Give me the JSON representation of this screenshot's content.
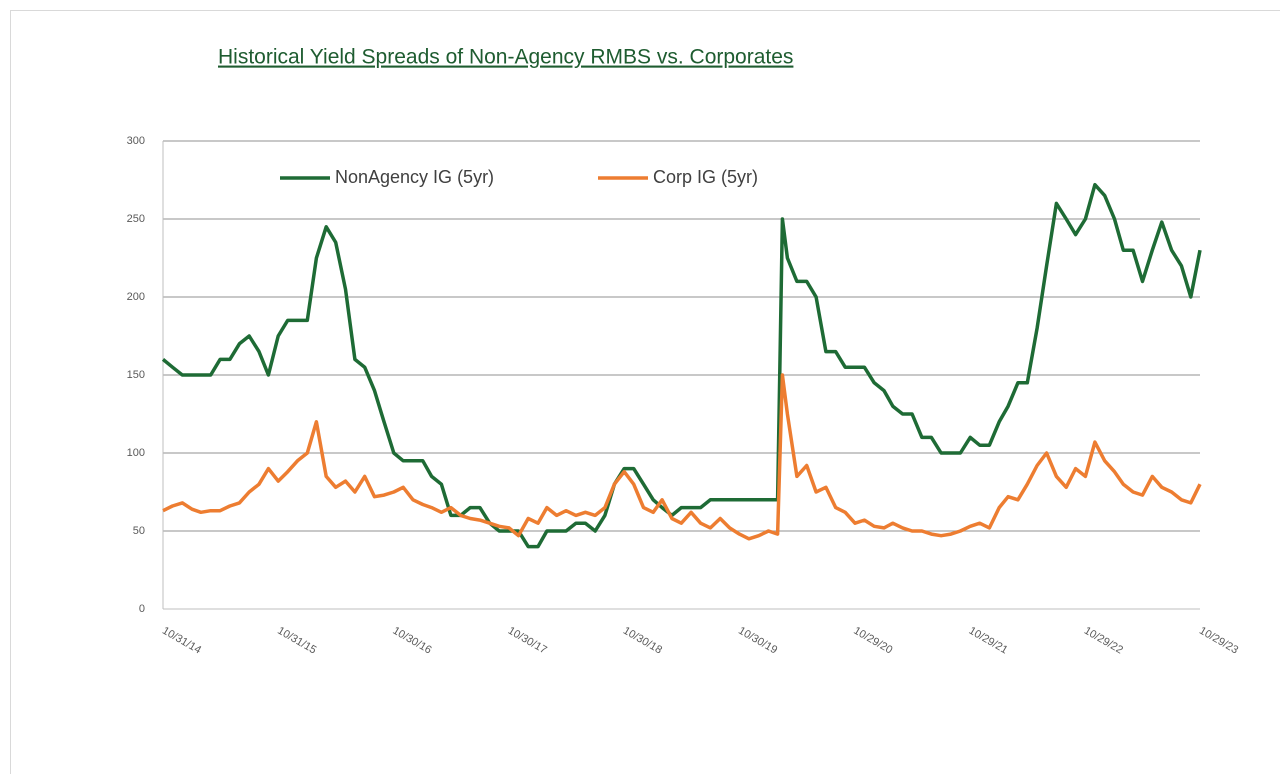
{
  "chart_data": {
    "type": "line",
    "title": "Historical Yield Spreads of Non-Agency RMBS vs. Corporates",
    "x": [
      "10/31/14",
      "11/30/14",
      "12/31/14",
      "1/31/15",
      "2/28/15",
      "3/31/15",
      "4/30/15",
      "5/31/15",
      "6/30/15",
      "7/31/15",
      "8/31/15",
      "9/30/15",
      "10/31/15",
      "11/30/15",
      "12/31/15",
      "1/31/16",
      "2/29/16",
      "3/31/16",
      "4/30/16",
      "5/31/16",
      "6/30/16",
      "7/31/16",
      "8/31/16",
      "9/30/16",
      "10/31/16",
      "11/30/16",
      "12/31/16",
      "1/31/17",
      "2/28/17",
      "3/31/17",
      "4/30/17",
      "5/31/17",
      "6/30/17",
      "7/31/17",
      "8/31/17",
      "9/30/17",
      "10/31/17",
      "11/30/17",
      "12/31/17",
      "1/31/18",
      "2/28/18",
      "3/31/18",
      "4/30/18",
      "5/31/18",
      "6/30/18",
      "7/31/18",
      "8/31/18",
      "9/30/18",
      "10/31/18",
      "11/30/18",
      "12/31/18",
      "1/31/19",
      "2/28/19",
      "3/31/19",
      "4/30/19",
      "5/31/19",
      "6/30/19",
      "7/31/19",
      "8/31/19",
      "9/30/19",
      "10/31/19",
      "11/30/19",
      "12/31/19",
      "1/31/20",
      "2/29/20",
      "3/15/20",
      "3/31/20",
      "4/30/20",
      "5/31/20",
      "6/30/20",
      "7/31/20",
      "8/31/20",
      "9/30/20",
      "10/31/20",
      "11/30/20",
      "12/31/20",
      "1/31/21",
      "2/28/21",
      "3/31/21",
      "4/30/21",
      "5/31/21",
      "6/30/21",
      "7/31/21",
      "8/31/21",
      "9/30/21",
      "10/31/21",
      "11/30/21",
      "12/31/21",
      "1/31/22",
      "2/28/22",
      "3/31/22",
      "4/30/22",
      "5/31/22",
      "6/30/22",
      "7/31/22",
      "8/31/22",
      "9/30/22",
      "10/31/22",
      "11/30/22",
      "12/31/22",
      "1/31/23",
      "2/28/23",
      "3/31/23",
      "4/30/23",
      "5/31/23",
      "6/30/23",
      "7/31/23",
      "8/31/23",
      "9/30/23",
      "10/29/23"
    ],
    "series": [
      {
        "name": "NonAgency IG (5yr)",
        "color": "#1e6b35",
        "values": [
          160,
          155,
          150,
          150,
          150,
          150,
          160,
          160,
          170,
          175,
          165,
          150,
          175,
          185,
          185,
          185,
          225,
          245,
          235,
          205,
          160,
          155,
          140,
          120,
          100,
          95,
          95,
          95,
          85,
          80,
          60,
          60,
          65,
          65,
          55,
          50,
          50,
          50,
          40,
          40,
          50,
          50,
          50,
          55,
          55,
          50,
          60,
          80,
          90,
          90,
          80,
          70,
          65,
          60,
          65,
          65,
          65,
          70,
          70,
          70,
          70,
          70,
          70,
          70,
          70,
          250,
          225,
          210,
          210,
          200,
          165,
          165,
          155,
          155,
          155,
          145,
          140,
          130,
          125,
          125,
          110,
          110,
          100,
          100,
          100,
          110,
          105,
          105,
          120,
          130,
          145,
          145,
          180,
          220,
          260,
          250,
          240,
          250,
          272,
          265,
          250,
          230,
          230,
          210,
          230,
          248,
          230,
          220,
          200,
          230
        ]
      },
      {
        "name": "Corp IG (5yr)",
        "color": "#ed7d31",
        "values": [
          63,
          66,
          68,
          64,
          62,
          63,
          63,
          66,
          68,
          75,
          80,
          90,
          82,
          88,
          95,
          100,
          120,
          85,
          78,
          82,
          75,
          85,
          72,
          73,
          75,
          78,
          70,
          67,
          65,
          62,
          65,
          60,
          58,
          57,
          55,
          53,
          52,
          47,
          58,
          55,
          65,
          60,
          63,
          60,
          62,
          60,
          65,
          80,
          88,
          80,
          65,
          62,
          70,
          58,
          55,
          62,
          55,
          52,
          58,
          52,
          48,
          45,
          47,
          50,
          48,
          150,
          125,
          85,
          92,
          75,
          78,
          65,
          62,
          55,
          57,
          53,
          52,
          55,
          52,
          50,
          50,
          48,
          47,
          48,
          50,
          53,
          55,
          52,
          65,
          72,
          70,
          80,
          92,
          100,
          85,
          78,
          90,
          85,
          107,
          95,
          88,
          80,
          75,
          73,
          85,
          78,
          75,
          70,
          68,
          80
        ]
      }
    ],
    "xlim": [
      "10/31/14",
      "10/29/23"
    ],
    "xticks": [
      "10/31/14",
      "10/31/15",
      "10/30/16",
      "10/30/17",
      "10/30/18",
      "10/30/19",
      "10/29/20",
      "10/29/21",
      "10/29/22",
      "10/29/23"
    ],
    "ylim": [
      0,
      300
    ],
    "yticks": [
      0,
      50,
      100,
      150,
      200,
      250,
      300
    ],
    "grid": true,
    "legend": "top-left"
  }
}
